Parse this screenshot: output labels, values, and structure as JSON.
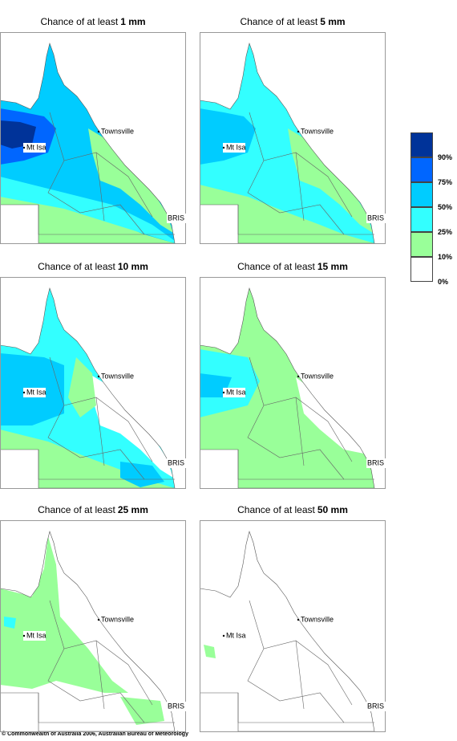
{
  "panels": [
    {
      "prefix": "Chance of at least",
      "amount": "1 mm"
    },
    {
      "prefix": "Chance of at least",
      "amount": "5 mm"
    },
    {
      "prefix": "Chance of at least",
      "amount": "10 mm"
    },
    {
      "prefix": "Chance of at least",
      "amount": "15 mm"
    },
    {
      "prefix": "Chance of at least",
      "amount": "25 mm"
    },
    {
      "prefix": "Chance of at least",
      "amount": "50 mm"
    }
  ],
  "places": [
    "Townsville",
    "Mt Isa",
    "BRIS"
  ],
  "legend": {
    "labels": [
      "90%",
      "75%",
      "50%",
      "25%",
      "10%",
      "0%"
    ],
    "colors": [
      "#003399",
      "#0066ff",
      "#00ccff",
      "#33ffff",
      "#99ff99",
      "#ffffff"
    ]
  },
  "footer": "© Commonwealth of Australia 2006, Australian Bureau of Meteorology"
}
